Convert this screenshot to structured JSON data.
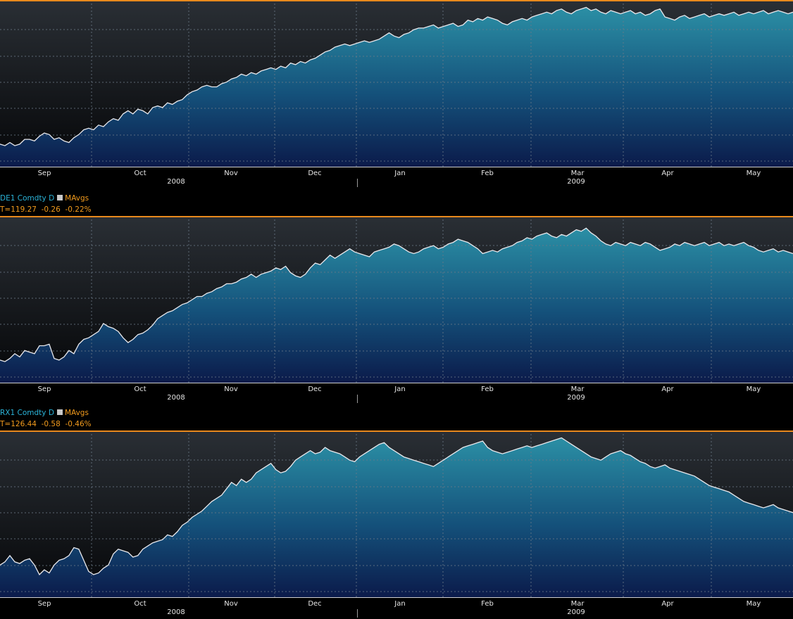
{
  "colors": {
    "accent_border": "#e8891c",
    "line": "#e8e8ec",
    "fill_top": "#2b8fa5",
    "fill_bottom": "#0b1a4a",
    "grid": "#6c7a88",
    "legend_name": "#2bb3d8",
    "legend_ma": "#f29b1d"
  },
  "axis": {
    "months": [
      "Sep",
      "Oct",
      "Nov",
      "Dec",
      "Jan",
      "Feb",
      "Mar",
      "Apr",
      "May"
    ],
    "years": [
      "2008",
      "2009"
    ]
  },
  "panels": [
    {
      "id": "top",
      "legend": null
    },
    {
      "id": "middle",
      "legend": {
        "ticker": "DE1 Comdty",
        "freq": "D",
        "study": "MAvgs",
        "last": "T=119.27  -0.26  -0.22%"
      }
    },
    {
      "id": "bottom",
      "legend": {
        "ticker": "RX1 Comdty",
        "freq": "D",
        "study": "MAvgs",
        "last": "T=126.44  -0.58  -0.46%"
      }
    }
  ],
  "chart_data": [
    {
      "type": "area",
      "title": "",
      "x_axis": {
        "ticks": [
          "Sep",
          "Oct",
          "Nov",
          "Dec",
          "Jan",
          "Feb",
          "Mar",
          "Apr",
          "May"
        ],
        "years": [
          "2008",
          "2009"
        ]
      },
      "y_axis": {
        "tick_labels": "not shown"
      },
      "grid": true,
      "series": [
        {
          "values": [
            12,
            11,
            13,
            11,
            12,
            15,
            15,
            14,
            17,
            19,
            18,
            15,
            16,
            14,
            13,
            16,
            18,
            21,
            22,
            21,
            24,
            23,
            26,
            28,
            27,
            31,
            33,
            31,
            34,
            33,
            31,
            35,
            36,
            35,
            38,
            37,
            39,
            40,
            43,
            45,
            46,
            48,
            49,
            48,
            48,
            50,
            51,
            53,
            54,
            56,
            55,
            57,
            56,
            58,
            59,
            60,
            59,
            61,
            60,
            63,
            62,
            64,
            63,
            65,
            66,
            68,
            70,
            71,
            73,
            74,
            75,
            74,
            75,
            76,
            77,
            76,
            77,
            78,
            80,
            82,
            80,
            79,
            81,
            82,
            84,
            85,
            85,
            86,
            87,
            85,
            86,
            87,
            88,
            86,
            87,
            90,
            89,
            91,
            90,
            92,
            91,
            90,
            88,
            87,
            89,
            90,
            91,
            90,
            92,
            93,
            94,
            95,
            94,
            96,
            97,
            95,
            94,
            96,
            97,
            98,
            96,
            97,
            95,
            94,
            96,
            95,
            94,
            95,
            96,
            94,
            95,
            93,
            94,
            96,
            97,
            92,
            91,
            90,
            92,
            93,
            91,
            92,
            93,
            94,
            92,
            93,
            94,
            93,
            94,
            95,
            93,
            94,
            95,
            94,
            95,
            96,
            94,
            95,
            96,
            95,
            94,
            95
          ]
        }
      ]
    },
    {
      "type": "area",
      "title": "",
      "x_axis": {
        "ticks": [
          "Sep",
          "Oct",
          "Nov",
          "Dec",
          "Jan",
          "Feb",
          "Mar",
          "Apr",
          "May"
        ],
        "years": [
          "2008",
          "2009"
        ]
      },
      "y_axis": {
        "tick_labels": "not shown"
      },
      "grid": true,
      "series": [
        {
          "name": "DE1 Comdty",
          "values": [
            12,
            11,
            13,
            16,
            14,
            18,
            17,
            16,
            21,
            21,
            22,
            13,
            12,
            14,
            18,
            16,
            22,
            25,
            26,
            28,
            30,
            35,
            33,
            32,
            30,
            26,
            23,
            25,
            28,
            29,
            31,
            34,
            38,
            40,
            42,
            43,
            45,
            47,
            48,
            50,
            52,
            52,
            54,
            55,
            57,
            58,
            60,
            60,
            61,
            63,
            64,
            66,
            64,
            66,
            67,
            68,
            70,
            69,
            71,
            67,
            65,
            64,
            66,
            70,
            73,
            72,
            75,
            78,
            76,
            78,
            80,
            82,
            80,
            79,
            78,
            77,
            80,
            81,
            82,
            83,
            85,
            84,
            82,
            80,
            79,
            80,
            82,
            83,
            84,
            82,
            83,
            85,
            86,
            88,
            87,
            86,
            84,
            82,
            79,
            80,
            81,
            80,
            82,
            83,
            84,
            86,
            87,
            89,
            88,
            90,
            91,
            92,
            90,
            89,
            91,
            90,
            92,
            94,
            93,
            95,
            92,
            90,
            87,
            85,
            84,
            86,
            85,
            84,
            86,
            85,
            84,
            86,
            85,
            83,
            81,
            82,
            83,
            85,
            84,
            86,
            85,
            84,
            85,
            86,
            84,
            85,
            86,
            84,
            85,
            84,
            85,
            86,
            84,
            83,
            81,
            80,
            81,
            82,
            80,
            81,
            80,
            79
          ]
        }
      ]
    },
    {
      "type": "area",
      "title": "",
      "x_axis": {
        "ticks": [
          "Sep",
          "Oct",
          "Nov",
          "Dec",
          "Jan",
          "Feb",
          "Mar",
          "Apr",
          "May"
        ],
        "years": [
          "2008",
          "2009"
        ]
      },
      "y_axis": {
        "tick_labels": "not shown"
      },
      "grid": true,
      "series": [
        {
          "name": "RX1 Comdty",
          "values": [
            18,
            20,
            24,
            20,
            19,
            21,
            22,
            18,
            12,
            15,
            13,
            18,
            21,
            22,
            24,
            29,
            28,
            21,
            14,
            12,
            13,
            16,
            18,
            25,
            28,
            27,
            26,
            23,
            24,
            28,
            30,
            32,
            33,
            34,
            37,
            36,
            39,
            43,
            45,
            48,
            50,
            52,
            55,
            58,
            60,
            62,
            66,
            70,
            68,
            72,
            70,
            72,
            76,
            78,
            80,
            82,
            78,
            76,
            77,
            80,
            84,
            86,
            88,
            90,
            88,
            89,
            92,
            90,
            89,
            88,
            86,
            84,
            83,
            86,
            88,
            90,
            92,
            94,
            95,
            92,
            90,
            88,
            86,
            85,
            84,
            83,
            82,
            81,
            80,
            82,
            84,
            86,
            88,
            90,
            92,
            93,
            94,
            95,
            96,
            92,
            90,
            89,
            88,
            89,
            90,
            91,
            92,
            93,
            92,
            93,
            94,
            95,
            96,
            97,
            98,
            96,
            94,
            92,
            90,
            88,
            86,
            85,
            84,
            86,
            88,
            89,
            90,
            88,
            87,
            85,
            83,
            82,
            80,
            79,
            80,
            81,
            79,
            78,
            77,
            76,
            75,
            74,
            72,
            70,
            68,
            67,
            66,
            65,
            64,
            62,
            60,
            58,
            57,
            56,
            55,
            54,
            55,
            56,
            54,
            53,
            52,
            51
          ]
        }
      ]
    }
  ]
}
